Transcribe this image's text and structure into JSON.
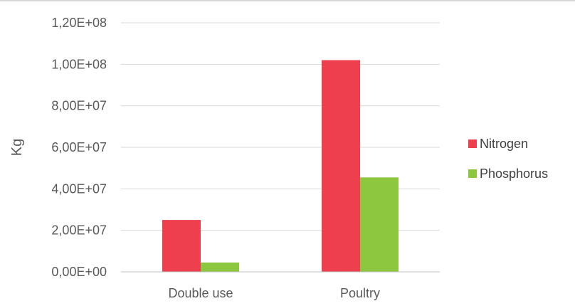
{
  "chart_data": {
    "type": "bar",
    "title": "",
    "xlabel": "",
    "ylabel": "Kg",
    "categories": [
      "Double use",
      "Poultry"
    ],
    "series": [
      {
        "name": "Nitrogen",
        "color": "#ee3f4f",
        "values": [
          25000000,
          102000000
        ]
      },
      {
        "name": "Phosphorus",
        "color": "#8dc63f",
        "values": [
          4500000,
          45500000
        ]
      }
    ],
    "ylim": [
      0,
      120000000
    ],
    "y_ticks": [
      0,
      20000000,
      40000000,
      60000000,
      80000000,
      100000000,
      120000000
    ],
    "y_tick_labels": [
      "0,00E+00",
      "2,00E+07",
      "4,00E+07",
      "6,00E+07",
      "8,00E+07",
      "1,00E+08",
      "1,20E+08"
    ],
    "grid": true,
    "legend_position": "right"
  }
}
